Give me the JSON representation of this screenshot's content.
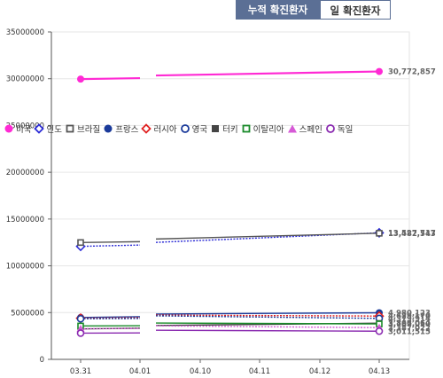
{
  "tabs": [
    {
      "label": "누적 확진환자",
      "active": true
    },
    {
      "label": "일 확진환자",
      "active": false
    }
  ],
  "chart_data": {
    "type": "line",
    "categories": [
      "03.31",
      "04.01",
      "04.10",
      "04.11",
      "04.12",
      "04.13"
    ],
    "ylim": [
      0,
      35000000
    ],
    "yticks": [
      0,
      5000000,
      10000000,
      15000000,
      20000000,
      25000000,
      30000000,
      35000000
    ],
    "ytick_labels": [
      "0",
      "5000000",
      "10000000",
      "15000000",
      "20000000",
      "25000000",
      "30000000",
      "35000000"
    ],
    "series": [
      {
        "name": "미국",
        "color": "#ff2ad4",
        "marker": "circle-filled",
        "style": "solid",
        "values": [
          29960000,
          30060000,
          null,
          null,
          null,
          30772857
        ],
        "end_label": "30,772,857"
      },
      {
        "name": "인도",
        "color": "#2b2bd6",
        "marker": "diamond-open",
        "style": "dotted",
        "values": [
          12080000,
          12220000,
          null,
          null,
          null,
          13527717
        ],
        "end_label": "13,527,717"
      },
      {
        "name": "브라질",
        "color": "#555555",
        "marker": "square-open",
        "style": "solid",
        "values": [
          12490000,
          12580000,
          null,
          null,
          null,
          13482543
        ],
        "end_label": "13,482,543"
      },
      {
        "name": "프랑스",
        "color": "#1a3a9a",
        "marker": "circle-filled",
        "style": "solid",
        "values": [
          4480000,
          4560000,
          null,
          null,
          null,
          4980123
        ],
        "end_label": "4,980,123"
      },
      {
        "name": "러시아",
        "color": "#e02020",
        "marker": "diamond-open",
        "style": "dotted",
        "values": [
          4400000,
          4450000,
          null,
          null,
          null,
          4629170
        ],
        "end_label": "4,629,170"
      },
      {
        "name": "영국",
        "color": "#1a3a9a",
        "marker": "circle-open",
        "style": "dotted",
        "values": [
          4340000,
          4370000,
          null,
          null,
          null,
          4379914
        ],
        "end_label": "4,379,914"
      },
      {
        "name": "터키",
        "color": "#444444",
        "marker": "square-filled",
        "style": "solid",
        "values": [
          3250000,
          3340000,
          null,
          null,
          null,
          3866064
        ],
        "end_label": "3,866,064"
      },
      {
        "name": "이탈리아",
        "color": "#1a8a2a",
        "marker": "square-open",
        "style": "solid",
        "values": [
          3570000,
          3600000,
          null,
          null,
          null,
          3787010
        ],
        "end_label": "3,787,010"
      },
      {
        "name": "스페인",
        "color": "#d65ad6",
        "marker": "triangle-filled",
        "style": "dotted",
        "values": [
          3270000,
          3300000,
          null,
          null,
          null,
          3387022
        ],
        "end_label": "3,387,022"
      },
      {
        "name": "독일",
        "color": "#8a2ab0",
        "marker": "circle-open",
        "style": "solid",
        "values": [
          2800000,
          2830000,
          null,
          null,
          null,
          3011515
        ],
        "end_label": "3,011,515"
      }
    ]
  }
}
